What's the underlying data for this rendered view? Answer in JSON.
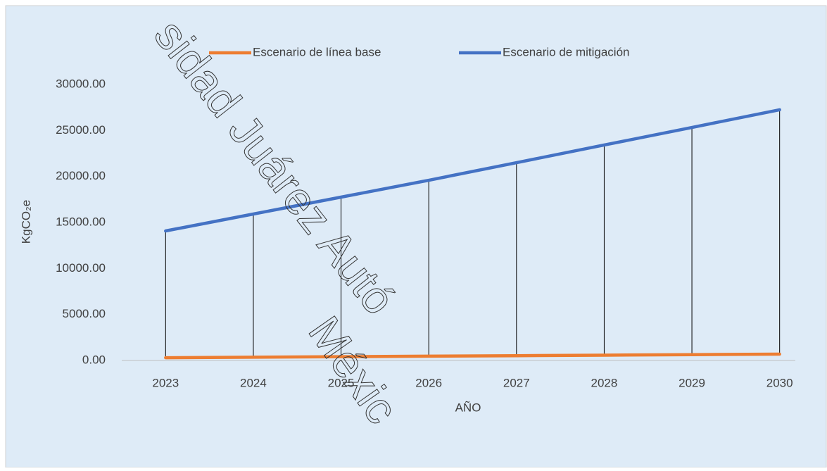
{
  "chart_data": {
    "type": "line",
    "categories": [
      "2023",
      "2024",
      "2025",
      "2026",
      "2027",
      "2028",
      "2029",
      "2030"
    ],
    "series": [
      {
        "name": "Escenario de línea base",
        "color": "#ed7d31",
        "values": [
          300,
          355,
          410,
          465,
          520,
          575,
          630,
          690
        ]
      },
      {
        "name": "Escenario de mitigación",
        "color": "#4472c4",
        "values": [
          14080,
          15920,
          17755,
          19590,
          21500,
          23420,
          25330,
          27250
        ]
      }
    ],
    "drop_lines": true,
    "ylim": [
      0,
      30000
    ],
    "yticks": [
      {
        "value": 0,
        "label": "0.00"
      },
      {
        "value": 5000,
        "label": "5000.00"
      },
      {
        "value": 10000,
        "label": "10000.00"
      },
      {
        "value": 15000,
        "label": "15000.00"
      },
      {
        "value": 20000,
        "label": "20000.00"
      },
      {
        "value": 25000,
        "label": "25000.00"
      },
      {
        "value": 30000,
        "label": "30000.00"
      }
    ],
    "y_label": "KgCO₂e",
    "x_label": "AÑO",
    "grid": false,
    "legend": "top",
    "watermark": [
      "sidad Juárez Autó",
      "Méxic"
    ]
  }
}
